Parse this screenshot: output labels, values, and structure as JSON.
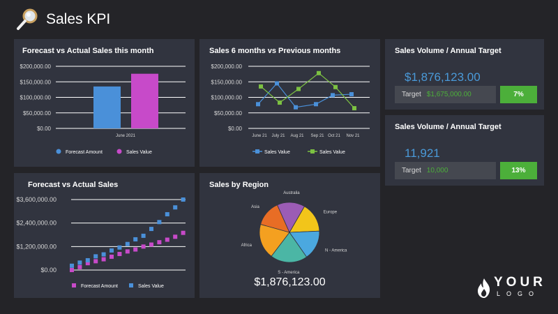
{
  "header": {
    "title": "Sales KPI",
    "icon": "magnifier-icon"
  },
  "panels": {
    "p1": {
      "title": "Forecast vs Actual Sales this month"
    },
    "p2": {
      "title": "Sales 6 months vs Previous months"
    },
    "p3": {
      "title": "Forecast vs Actual Sales"
    },
    "p4": {
      "title": "Sales by Region",
      "total": "$1,876,123.00"
    },
    "kpi1": {
      "title": "Sales Volume / Annual Target",
      "value": "$1,876,123.00",
      "target_label": "Target",
      "target_value": "$1,675,000.00",
      "percent": "7%"
    },
    "kpi2": {
      "title": "Sales Volume / Annual Target",
      "value": "11,921",
      "target_label": "Target",
      "target_value": "10,000",
      "percent": "13%"
    }
  },
  "colors": {
    "blue": "#4a90d9",
    "magenta": "#c74ac9",
    "green": "#7cc142",
    "accent_green": "#4caf3a"
  },
  "logo": {
    "word": "YOUR",
    "sub": "LOGO",
    "icon": "flame-icon"
  },
  "chart_data": [
    {
      "type": "bar",
      "title": "Forecast vs Actual Sales this month",
      "categories": [
        "June 2021"
      ],
      "series": [
        {
          "name": "Forecast Amount",
          "values": [
            135000
          ],
          "color": "#4a90d9"
        },
        {
          "name": "Sales Value",
          "values": [
            176000
          ],
          "color": "#c74ac9"
        }
      ],
      "yticks": [
        "$0.00",
        "$50,000.00",
        "$100,000.00",
        "$150,000.00",
        "$200,000.00"
      ],
      "ylim": [
        0,
        200000
      ],
      "legend": "bottom"
    },
    {
      "type": "line",
      "title": "Sales 6 months vs Previous months",
      "categories": [
        "June 21",
        "July 21",
        "Aug 21",
        "Sep 21",
        "Oct 21",
        "Nov 21"
      ],
      "series": [
        {
          "name": "Sales Value",
          "color": "#4a90d9",
          "points": [
            [
              0,
              78000
            ],
            [
              1,
              145000
            ],
            [
              2,
              68000
            ],
            [
              3,
              78000
            ],
            [
              4,
              107000
            ],
            [
              5,
              110000
            ]
          ]
        },
        {
          "name": "Sales Value",
          "color": "#7cc142",
          "points": [
            [
              0,
              135000
            ],
            [
              1,
              83000
            ],
            [
              2,
              127000
            ],
            [
              3,
              178000
            ],
            [
              4,
              133000
            ],
            [
              5,
              65000
            ]
          ]
        }
      ],
      "yticks": [
        "$0.00",
        "$50,000.00",
        "$100,000.00",
        "$150,000.00",
        "$200,000.00"
      ],
      "ylim": [
        0,
        200000
      ],
      "legend": "bottom"
    },
    {
      "type": "scatter",
      "title": "Forecast vs Actual Sales",
      "x": [
        1,
        2,
        3,
        4,
        5,
        6,
        7,
        8,
        9,
        10,
        11,
        12,
        13,
        14,
        15
      ],
      "series": [
        {
          "name": "Forecast Amount",
          "color": "#c74ac9",
          "values": [
            0,
            150000,
            350000,
            450000,
            550000,
            680000,
            820000,
            950000,
            1050000,
            1200000,
            1300000,
            1420000,
            1550000,
            1700000,
            1900000
          ]
        },
        {
          "name": "Sales Value",
          "color": "#4a90d9",
          "values": [
            220000,
            380000,
            500000,
            700000,
            800000,
            1000000,
            1150000,
            1330000,
            1570000,
            1750000,
            2100000,
            2450000,
            2850000,
            3200000,
            3600000
          ]
        }
      ],
      "yticks": [
        "$0.00",
        "$1,200,000.00",
        "$2,400,000.00",
        "$3,600,000.00"
      ],
      "ylim": [
        0,
        3600000
      ],
      "legend": "bottom"
    },
    {
      "type": "pie",
      "title": "Sales by Region",
      "labels": [
        "Europe",
        "N - America",
        "S - America",
        "Africa",
        "Asia",
        "Australia"
      ],
      "values": [
        16,
        16,
        20,
        19,
        14,
        15
      ],
      "colors": [
        "#f2c51a",
        "#4ba8df",
        "#4bb6a5",
        "#f4a020",
        "#e86d25",
        "#9b5cb5"
      ]
    }
  ]
}
